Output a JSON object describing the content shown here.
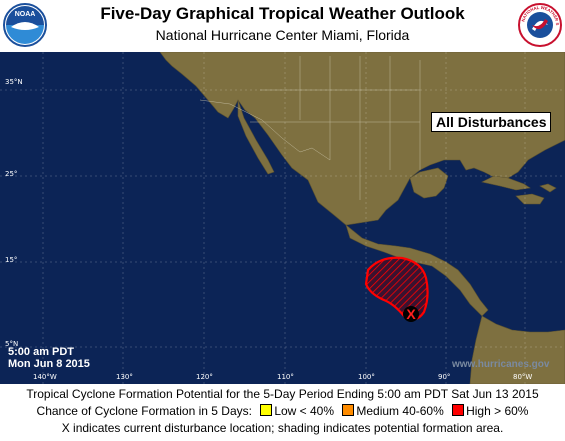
{
  "header": {
    "title": "Five-Day Graphical Tropical Weather Outlook",
    "subtitle": "National Hurricane Center  Miami, Florida",
    "left_logo_text": "NOAA",
    "right_logo_text": "NATIONAL WEATHER SERVICE"
  },
  "map": {
    "view_label": "All Disturbances",
    "lat_labels": [
      "35°N",
      "25°",
      "15°",
      "5°N"
    ],
    "lon_labels": [
      "140°W",
      "130°",
      "120°",
      "110°",
      "100°",
      "90°",
      "80°W"
    ],
    "time_line1": "5:00 am PDT",
    "time_line2": "Mon Jun 8 2015",
    "watermark": "www.hurricanes.gov",
    "disturbance": {
      "marker": "X",
      "shading_category": "High > 60%"
    }
  },
  "legend": {
    "line1": "Tropical Cyclone Formation Potential for the 5-Day Period Ending 5:00 am PDT Sat Jun 13 2015",
    "line2_prefix": "Chance of Cyclone Formation in 5 Days:",
    "low_label": "Low < 40%",
    "medium_label": "Medium 40-60%",
    "high_label": "High > 60%",
    "line3": "X indicates current disturbance location; shading indicates potential formation area."
  },
  "colors": {
    "ocean": "#0c2456",
    "land": "#7e7040",
    "low": "#ffff00",
    "medium": "#ff8c00",
    "high": "#ff0000",
    "high_outline": "#ff0000"
  }
}
